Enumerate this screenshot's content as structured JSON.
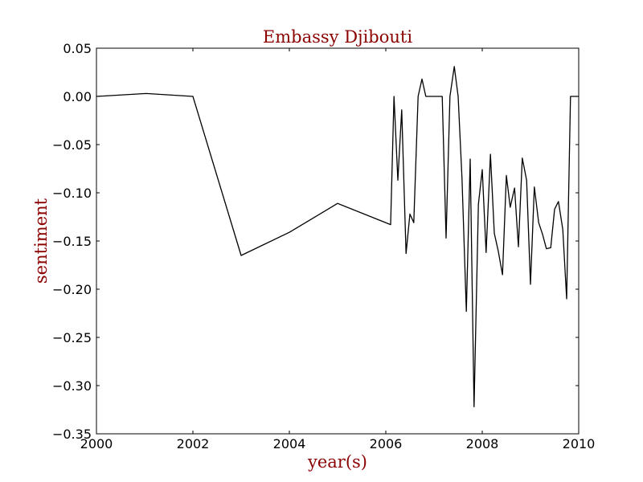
{
  "chart_data": {
    "type": "line",
    "title": "Embassy Djibouti",
    "xlabel": "year(s)",
    "ylabel": "sentiment",
    "xlim": [
      2000,
      2010
    ],
    "ylim": [
      -0.35,
      0.05
    ],
    "grid": false,
    "colors": {
      "label": "#8b0000",
      "line": "#000000",
      "axes": "#000000"
    },
    "x_tick_labels": [
      {
        "value": 2000,
        "label": "2000"
      },
      {
        "value": 2002,
        "label": "2002"
      },
      {
        "value": 2004,
        "label": "2004"
      },
      {
        "value": 2006,
        "label": "2006"
      },
      {
        "value": 2008,
        "label": "2008"
      },
      {
        "value": 2010,
        "label": "2010"
      }
    ],
    "y_tick_labels": [
      {
        "value": 0.05,
        "label": "0.05"
      },
      {
        "value": 0.0,
        "label": "0.00"
      },
      {
        "value": -0.05,
        "label": "−0.05"
      },
      {
        "value": -0.1,
        "label": "−0.10"
      },
      {
        "value": -0.15,
        "label": "−0.15"
      },
      {
        "value": -0.2,
        "label": "−0.20"
      },
      {
        "value": -0.25,
        "label": "−0.25"
      },
      {
        "value": -0.3,
        "label": "−0.30"
      },
      {
        "value": -0.35,
        "label": "−0.35"
      }
    ],
    "series": [
      {
        "x": [
          2000.0,
          2001.03,
          2002.0,
          2003.0,
          2004.0,
          2005.0,
          2006.1,
          2006.17,
          2006.25,
          2006.33,
          2006.42,
          2006.5,
          2006.58,
          2006.67,
          2006.75,
          2006.83,
          2006.92,
          2007.0,
          2007.08,
          2007.17,
          2007.25,
          2007.33,
          2007.42,
          2007.5,
          2007.58,
          2007.67,
          2007.75,
          2007.83,
          2007.92,
          2008.0,
          2008.08,
          2008.17,
          2008.25,
          2008.33,
          2008.42,
          2008.5,
          2008.58,
          2008.67,
          2008.75,
          2008.83,
          2008.92,
          2009.0,
          2009.08,
          2009.17,
          2009.25,
          2009.33,
          2009.42,
          2009.5,
          2009.58,
          2009.67,
          2009.75,
          2009.83,
          2009.92,
          2010.0
        ],
        "y": [
          0.0,
          0.003,
          0.0,
          -0.165,
          -0.141,
          -0.111,
          -0.133,
          0.0,
          -0.087,
          -0.014,
          -0.163,
          -0.122,
          -0.131,
          0.0,
          0.018,
          0.0,
          0.0,
          0.0,
          0.0,
          0.0,
          -0.147,
          0.0,
          0.031,
          0.0,
          -0.085,
          -0.223,
          -0.065,
          -0.322,
          -0.112,
          -0.076,
          -0.162,
          -0.06,
          -0.142,
          -0.16,
          -0.185,
          -0.082,
          -0.115,
          -0.095,
          -0.156,
          -0.064,
          -0.087,
          -0.195,
          -0.094,
          -0.131,
          -0.143,
          -0.158,
          -0.157,
          -0.117,
          -0.109,
          -0.138,
          -0.21,
          0.0,
          0.0,
          0.0
        ]
      }
    ]
  }
}
